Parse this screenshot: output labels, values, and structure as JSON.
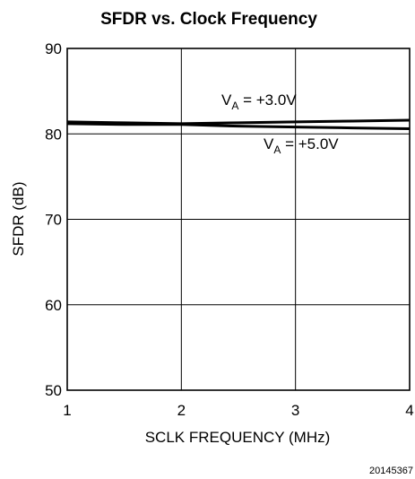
{
  "chart_data": {
    "type": "line",
    "title": "SFDR vs. Clock Frequency",
    "xlabel": "SCLK FREQUENCY (MHz)",
    "ylabel": "SFDR (dB)",
    "xlim": [
      1,
      4
    ],
    "ylim": [
      50,
      90
    ],
    "x_ticks": [
      "1",
      "2",
      "3",
      "4"
    ],
    "y_ticks": [
      "50",
      "60",
      "70",
      "80",
      "90"
    ],
    "grid": true,
    "x": [
      1,
      1.5,
      2,
      2.5,
      3,
      3.5,
      4
    ],
    "series": [
      {
        "name_main": "V",
        "name_sub": "A",
        "name_rest": " = +3.0V",
        "values": [
          81.4,
          81.3,
          81.2,
          81.3,
          81.4,
          81.5,
          81.6
        ]
      },
      {
        "name_main": "V",
        "name_sub": "A",
        "name_rest": " = +5.0V",
        "values": [
          81.2,
          81.1,
          81.1,
          80.9,
          80.8,
          80.7,
          80.6
        ]
      }
    ],
    "footnote": "20145367",
    "colors": {
      "line": "#000000",
      "grid": "#000000",
      "background": "#ffffff"
    }
  }
}
